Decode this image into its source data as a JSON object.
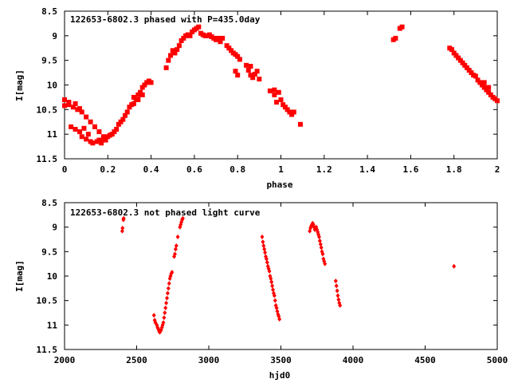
{
  "chart_data": [
    {
      "type": "scatter",
      "title": "122653-6802.3 phased with P=435.0day",
      "xlabel": "phase",
      "ylabel": "I[mag]",
      "xlim": [
        0,
        2
      ],
      "ylim": [
        11.5,
        8.5
      ],
      "y_inverted": true,
      "xticks": [
        "0",
        "0.2",
        "0.4",
        "0.6",
        "0.8",
        "1",
        "1.2",
        "1.4",
        "1.6",
        "1.8",
        "2"
      ],
      "yticks": [
        "8.5",
        "9",
        "9.5",
        "10",
        "10.5",
        "11",
        "11.5"
      ],
      "marker_color": "#ff0000",
      "grid": false,
      "series": [
        {
          "points": [
            [
              0.0,
              10.42
            ],
            [
              0.02,
              10.4
            ],
            [
              0.04,
              10.45
            ],
            [
              0.06,
              10.5
            ],
            [
              0.08,
              10.55
            ],
            [
              0.1,
              10.65
            ],
            [
              0.12,
              10.75
            ],
            [
              0.14,
              10.85
            ],
            [
              0.16,
              10.95
            ],
            [
              0.18,
              11.05
            ],
            [
              0.0,
              10.3
            ],
            [
              0.02,
              10.35
            ],
            [
              0.05,
              10.38
            ],
            [
              0.07,
              10.48
            ],
            [
              0.03,
              10.85
            ],
            [
              0.05,
              10.9
            ],
            [
              0.07,
              10.95
            ],
            [
              0.09,
              10.88
            ],
            [
              0.11,
              11.0
            ],
            [
              0.08,
              11.05
            ],
            [
              0.1,
              11.1
            ],
            [
              0.12,
              11.15
            ],
            [
              0.13,
              11.18
            ],
            [
              0.15,
              11.15
            ],
            [
              0.16,
              11.12
            ],
            [
              0.18,
              11.1
            ],
            [
              0.2,
              11.05
            ],
            [
              0.22,
              11.0
            ],
            [
              0.24,
              10.9
            ],
            [
              0.17,
              11.18
            ],
            [
              0.19,
              11.12
            ],
            [
              0.21,
              11.02
            ],
            [
              0.23,
              10.95
            ],
            [
              0.25,
              10.8
            ],
            [
              0.26,
              10.75
            ],
            [
              0.27,
              10.7
            ],
            [
              0.28,
              10.62
            ],
            [
              0.29,
              10.55
            ],
            [
              0.3,
              10.45
            ],
            [
              0.31,
              10.4
            ],
            [
              0.32,
              10.38
            ],
            [
              0.33,
              10.3
            ],
            [
              0.34,
              10.2
            ],
            [
              0.35,
              10.15
            ],
            [
              0.36,
              10.05
            ],
            [
              0.37,
              10.0
            ],
            [
              0.38,
              9.95
            ],
            [
              0.39,
              9.92
            ],
            [
              0.4,
              9.95
            ],
            [
              0.36,
              10.2
            ],
            [
              0.34,
              10.3
            ],
            [
              0.32,
              10.25
            ],
            [
              0.47,
              9.65
            ],
            [
              0.48,
              9.5
            ],
            [
              0.49,
              9.4
            ],
            [
              0.5,
              9.3
            ],
            [
              0.51,
              9.35
            ],
            [
              0.52,
              9.28
            ],
            [
              0.53,
              9.2
            ],
            [
              0.54,
              9.1
            ],
            [
              0.55,
              9.05
            ],
            [
              0.56,
              9.0
            ],
            [
              0.57,
              8.98
            ],
            [
              0.58,
              9.0
            ],
            [
              0.59,
              8.92
            ],
            [
              0.6,
              8.88
            ],
            [
              0.61,
              8.85
            ],
            [
              0.62,
              8.82
            ],
            [
              0.63,
              8.95
            ],
            [
              0.64,
              8.98
            ],
            [
              0.65,
              9.0
            ],
            [
              0.66,
              9.0
            ],
            [
              0.67,
              8.98
            ],
            [
              0.68,
              9.02
            ],
            [
              0.69,
              9.05
            ],
            [
              0.7,
              9.08
            ],
            [
              0.71,
              9.05
            ],
            [
              0.72,
              9.12
            ],
            [
              0.73,
              9.05
            ],
            [
              0.75,
              9.2
            ],
            [
              0.76,
              9.25
            ],
            [
              0.77,
              9.3
            ],
            [
              0.78,
              9.35
            ],
            [
              0.79,
              9.38
            ],
            [
              0.8,
              9.42
            ],
            [
              0.81,
              9.48
            ],
            [
              0.8,
              9.8
            ],
            [
              0.79,
              9.72
            ],
            [
              0.84,
              9.6
            ],
            [
              0.85,
              9.7
            ],
            [
              0.86,
              9.8
            ],
            [
              0.87,
              9.85
            ],
            [
              0.88,
              9.78
            ],
            [
              0.89,
              9.72
            ],
            [
              0.9,
              9.88
            ],
            [
              0.86,
              9.62
            ],
            [
              0.95,
              10.12
            ],
            [
              0.97,
              10.2
            ],
            [
              0.98,
              10.35
            ],
            [
              1.0,
              10.3
            ],
            [
              1.01,
              10.4
            ],
            [
              1.02,
              10.45
            ],
            [
              1.03,
              10.5
            ],
            [
              1.04,
              10.55
            ],
            [
              1.05,
              10.6
            ],
            [
              1.06,
              10.55
            ],
            [
              0.97,
              10.1
            ],
            [
              0.99,
              10.15
            ],
            [
              1.09,
              10.8
            ],
            [
              1.52,
              9.08
            ],
            [
              1.53,
              9.05
            ],
            [
              1.55,
              8.85
            ],
            [
              1.56,
              8.82
            ],
            [
              1.78,
              9.25
            ],
            [
              1.79,
              9.28
            ],
            [
              1.8,
              9.35
            ],
            [
              1.81,
              9.4
            ],
            [
              1.82,
              9.45
            ],
            [
              1.83,
              9.5
            ],
            [
              1.84,
              9.55
            ],
            [
              1.85,
              9.6
            ],
            [
              1.86,
              9.65
            ],
            [
              1.87,
              9.7
            ],
            [
              1.88,
              9.75
            ],
            [
              1.89,
              9.8
            ],
            [
              1.9,
              9.82
            ],
            [
              1.91,
              9.9
            ],
            [
              1.92,
              9.95
            ],
            [
              1.93,
              10.0
            ],
            [
              1.94,
              10.05
            ],
            [
              1.95,
              10.1
            ],
            [
              1.96,
              10.15
            ],
            [
              1.97,
              10.2
            ],
            [
              1.98,
              10.25
            ],
            [
              1.99,
              10.28
            ],
            [
              2.0,
              10.32
            ],
            [
              1.96,
              10.05
            ],
            [
              1.94,
              9.95
            ]
          ]
        }
      ]
    },
    {
      "type": "scatter",
      "title": "122653-6802.3 not phased light curve",
      "xlabel": "hjd0",
      "ylabel": "I[mag]",
      "xlim": [
        2000,
        5000
      ],
      "ylim": [
        11.5,
        8.5
      ],
      "y_inverted": true,
      "xticks": [
        "2000",
        "2500",
        "3000",
        "3500",
        "4000",
        "4500",
        "5000"
      ],
      "yticks": [
        "8.5",
        "9",
        "9.5",
        "10",
        "10.5",
        "11",
        "11.5"
      ],
      "marker_color": "#ff0000",
      "grid": false,
      "series": [
        {
          "points": [
            [
              2400,
              9.08
            ],
            [
              2402,
              9.02
            ],
            [
              2408,
              8.85
            ],
            [
              2410,
              8.82
            ],
            [
              2620,
              10.8
            ],
            [
              2625,
              10.9
            ],
            [
              2630,
              10.95
            ],
            [
              2640,
              11.0
            ],
            [
              2645,
              11.05
            ],
            [
              2650,
              11.08
            ],
            [
              2655,
              11.12
            ],
            [
              2660,
              11.15
            ],
            [
              2665,
              11.12
            ],
            [
              2670,
              11.1
            ],
            [
              2675,
              11.05
            ],
            [
              2680,
              11.0
            ],
            [
              2685,
              10.95
            ],
            [
              2690,
              10.85
            ],
            [
              2695,
              10.75
            ],
            [
              2700,
              10.65
            ],
            [
              2705,
              10.55
            ],
            [
              2710,
              10.45
            ],
            [
              2715,
              10.35
            ],
            [
              2720,
              10.25
            ],
            [
              2725,
              10.15
            ],
            [
              2730,
              10.05
            ],
            [
              2735,
              10.0
            ],
            [
              2740,
              9.95
            ],
            [
              2745,
              9.92
            ],
            [
              2760,
              9.6
            ],
            [
              2765,
              9.55
            ],
            [
              2770,
              9.45
            ],
            [
              2775,
              9.38
            ],
            [
              2785,
              9.2
            ],
            [
              2800,
              9.0
            ],
            [
              2805,
              8.95
            ],
            [
              2810,
              8.9
            ],
            [
              2815,
              8.85
            ],
            [
              2820,
              8.82
            ],
            [
              3370,
              9.2
            ],
            [
              3375,
              9.3
            ],
            [
              3380,
              9.38
            ],
            [
              3385,
              9.45
            ],
            [
              3390,
              9.52
            ],
            [
              3395,
              9.6
            ],
            [
              3400,
              9.65
            ],
            [
              3405,
              9.72
            ],
            [
              3410,
              9.8
            ],
            [
              3415,
              9.85
            ],
            [
              3420,
              9.9
            ],
            [
              3425,
              10.0
            ],
            [
              3430,
              10.05
            ],
            [
              3435,
              10.12
            ],
            [
              3440,
              10.2
            ],
            [
              3445,
              10.28
            ],
            [
              3450,
              10.35
            ],
            [
              3455,
              10.4
            ],
            [
              3460,
              10.5
            ],
            [
              3465,
              10.6
            ],
            [
              3470,
              10.65
            ],
            [
              3475,
              10.72
            ],
            [
              3480,
              10.78
            ],
            [
              3485,
              10.82
            ],
            [
              3490,
              10.88
            ],
            [
              3700,
              9.08
            ],
            [
              3705,
              9.02
            ],
            [
              3710,
              8.98
            ],
            [
              3715,
              8.95
            ],
            [
              3720,
              8.92
            ],
            [
              3725,
              8.95
            ],
            [
              3730,
              9.0
            ],
            [
              3735,
              9.05
            ],
            [
              3740,
              9.02
            ],
            [
              3745,
              9.0
            ],
            [
              3750,
              9.05
            ],
            [
              3755,
              9.1
            ],
            [
              3760,
              9.15
            ],
            [
              3765,
              9.2
            ],
            [
              3770,
              9.28
            ],
            [
              3775,
              9.35
            ],
            [
              3780,
              9.42
            ],
            [
              3785,
              9.5
            ],
            [
              3790,
              9.55
            ],
            [
              3795,
              9.65
            ],
            [
              3800,
              9.7
            ],
            [
              3805,
              9.75
            ],
            [
              3880,
              10.1
            ],
            [
              3885,
              10.2
            ],
            [
              3890,
              10.3
            ],
            [
              3895,
              10.4
            ],
            [
              3900,
              10.48
            ],
            [
              3905,
              10.55
            ],
            [
              3910,
              10.6
            ],
            [
              4700,
              9.8
            ]
          ]
        }
      ]
    }
  ]
}
